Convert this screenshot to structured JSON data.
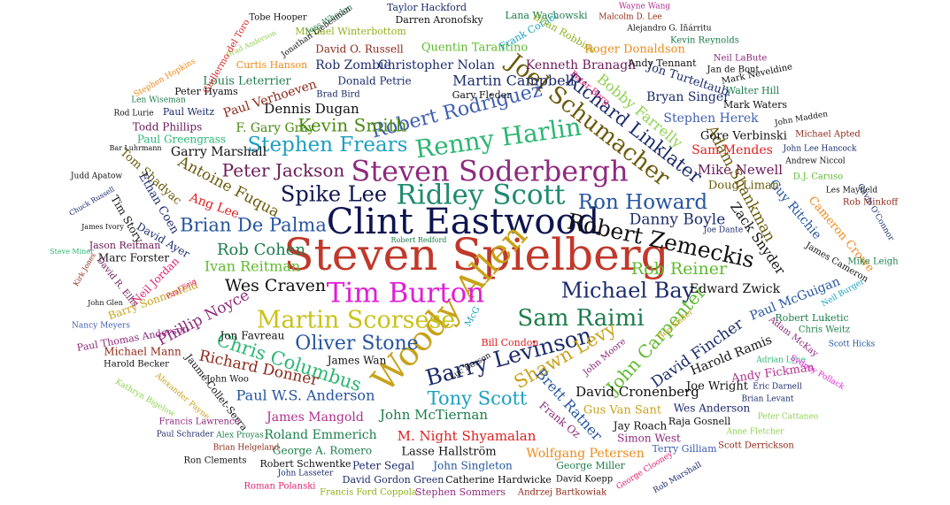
{
  "title": "",
  "words": [
    {
      "text": "Steven Spielberg",
      "color": "#c0392b",
      "weight": 1.0
    },
    {
      "text": "Clint Eastwood",
      "color": "#0d1450",
      "weight": 0.86
    },
    {
      "text": "Woody Allen",
      "color": "#c8a21a",
      "weight": 0.78
    },
    {
      "text": "Steven Soderbergh",
      "color": "#8e2a7e",
      "weight": 0.7
    },
    {
      "text": "Ridley Scott",
      "color": "#1f8a70",
      "weight": 0.7
    },
    {
      "text": "Tim Burton",
      "color": "#e01fd6",
      "weight": 0.68
    },
    {
      "text": "Renny Harlin",
      "color": "#2bb673",
      "weight": 0.62
    },
    {
      "text": "Martin Scorsese",
      "color": "#c8c21a",
      "weight": 0.6
    },
    {
      "text": "Robert Zemeckis",
      "color": "#111111",
      "weight": 0.56
    },
    {
      "text": "Joel Schumacher",
      "color": "#6b5a0c",
      "weight": 0.56
    },
    {
      "text": "Barry Levinson",
      "color": "#1c2b6b",
      "weight": 0.56
    },
    {
      "text": "Sam Raimi",
      "color": "#1d7d4d",
      "weight": 0.56
    },
    {
      "text": "Michael Bay",
      "color": "#1c2b6b",
      "weight": 0.52
    },
    {
      "text": "Spike Lee",
      "color": "#0d1450",
      "weight": 0.52
    },
    {
      "text": "Ron Howard",
      "color": "#2554a0",
      "weight": 0.5
    },
    {
      "text": "Robert Rodriguez",
      "color": "#3f5fb0",
      "weight": 0.5
    },
    {
      "text": "Stephen Frears",
      "color": "#1da0c0",
      "weight": 0.5
    },
    {
      "text": "Richard Linklater",
      "color": "#1c2b6b",
      "weight": 0.48
    },
    {
      "text": "Oliver Stone",
      "color": "#2554a0",
      "weight": 0.5
    },
    {
      "text": "Brian De Palma",
      "color": "#2554a0",
      "weight": 0.45
    },
    {
      "text": "Chris Columbus",
      "color": "#2bb673",
      "weight": 0.45
    },
    {
      "text": "Shawn Levy",
      "color": "#c8a21a",
      "weight": 0.45
    },
    {
      "text": "Tony Scott",
      "color": "#1da0c0",
      "weight": 0.45
    },
    {
      "text": "John Carpenter",
      "color": "#5fba2f",
      "weight": 0.43
    },
    {
      "text": "Peter Jackson",
      "color": "#6b1a5a",
      "weight": 0.42
    },
    {
      "text": "Kevin Smith",
      "color": "#4a8a10",
      "weight": 0.42
    },
    {
      "text": "Wes Craven",
      "color": "#111111",
      "weight": 0.4
    },
    {
      "text": "Rob Reiner",
      "color": "#5fba2f",
      "weight": 0.4
    },
    {
      "text": "Adam Shankman",
      "color": "#6b5a0c",
      "weight": 0.36
    },
    {
      "text": "Rob Cohen",
      "color": "#1d7d4d",
      "weight": 0.38
    },
    {
      "text": "Danny Boyle",
      "color": "#1c2b6b",
      "weight": 0.37
    },
    {
      "text": "David Fincher",
      "color": "#1c2b6b",
      "weight": 0.36
    },
    {
      "text": "Antoine Fuqua",
      "color": "#6b5a0c",
      "weight": 0.36
    },
    {
      "text": "Phillip Noyce",
      "color": "#8e2a7e",
      "weight": 0.34
    },
    {
      "text": "Richard Donner",
      "color": "#8e2a1a",
      "weight": 0.34
    },
    {
      "text": "Ivan Reitman",
      "color": "#5fba2f",
      "weight": 0.33
    },
    {
      "text": "Paul W.S. Anderson",
      "color": "#2554a0",
      "weight": 0.33
    },
    {
      "text": "Brett Ratner",
      "color": "#2554a0",
      "weight": 0.33
    },
    {
      "text": "Bobby Farrelly",
      "color": "#8fd14f",
      "weight": 0.33
    },
    {
      "text": "Zack Snyder",
      "color": "#111111",
      "weight": 0.3
    },
    {
      "text": "Martin Campbell",
      "color": "#1c2b6b",
      "weight": 0.32
    },
    {
      "text": "John McTiernan",
      "color": "#1d7d4d",
      "weight": 0.32
    },
    {
      "text": "David Cronenberg",
      "color": "#111111",
      "weight": 0.32
    },
    {
      "text": "M. Night Shyamalan",
      "color": "#e02020",
      "weight": 0.31
    },
    {
      "text": "Dennis Dugan",
      "color": "#111111",
      "weight": 0.31
    },
    {
      "text": "Mike Newell",
      "color": "#6b1a5a",
      "weight": 0.3
    },
    {
      "text": "Guy Ritchie",
      "color": "#2554a0",
      "weight": 0.28
    },
    {
      "text": "Paul McGuigan",
      "color": "#2554a0",
      "weight": 0.28
    },
    {
      "text": "Edward Zwick",
      "color": "#111111",
      "weight": 0.28
    },
    {
      "text": "Sam Mendes",
      "color": "#e02020",
      "weight": 0.28
    },
    {
      "text": "Harold Ramis",
      "color": "#111111",
      "weight": 0.28
    },
    {
      "text": "Cameron Crowe",
      "color": "#f08a1a",
      "weight": 0.26
    },
    {
      "text": "Garry Marshall",
      "color": "#111111",
      "weight": 0.28
    },
    {
      "text": "F. Gary Gray",
      "color": "#4a8a10",
      "weight": 0.28
    },
    {
      "text": "Ang Lee",
      "color": "#e02020",
      "weight": 0.28
    },
    {
      "text": "James Mangold",
      "color": "#b0308e",
      "weight": 0.27
    },
    {
      "text": "Wolfgang Petersen",
      "color": "#f08a1a",
      "weight": 0.27
    },
    {
      "text": "Roland Emmerich",
      "color": "#1d7d4d",
      "weight": 0.26
    },
    {
      "text": "Rob Zombie",
      "color": "#1c2b6b",
      "weight": 0.25
    },
    {
      "text": "Christopher Nolan",
      "color": "#1c2b6b",
      "weight": 0.25
    },
    {
      "text": "Kenneth Branagh",
      "color": "#6b1a5a",
      "weight": 0.25
    },
    {
      "text": "Stephen Herek",
      "color": "#3f5fb0",
      "weight": 0.25
    },
    {
      "text": "Bryan Singer",
      "color": "#1c2b6b",
      "weight": 0.25
    },
    {
      "text": "Tom Shadyac",
      "color": "#6b5a0c",
      "weight": 0.24
    },
    {
      "text": "Ethan Coen",
      "color": "#1c2b6b",
      "weight": 0.24
    },
    {
      "text": "Jon Turteltaub",
      "color": "#1c2b6b",
      "weight": 0.24
    },
    {
      "text": "Paul Verhoeven",
      "color": "#8e2a1a",
      "weight": 0.24
    },
    {
      "text": "Doug Liman",
      "color": "#6b5a0c",
      "weight": 0.24
    },
    {
      "text": "Gore Verbinski",
      "color": "#111111",
      "weight": 0.23
    },
    {
      "text": "Roger Donaldson",
      "color": "#f08a1a",
      "weight": 0.23
    },
    {
      "text": "Quentin Tarantino",
      "color": "#5fba2f",
      "weight": 0.23
    },
    {
      "text": "Andy Fickman",
      "color": "#b0308e",
      "weight": 0.23
    },
    {
      "text": "Jon Favreau",
      "color": "#111111",
      "weight": 0.22
    },
    {
      "text": "Gus Van Sant",
      "color": "#c8a21a",
      "weight": 0.22
    },
    {
      "text": "Marc Forster",
      "color": "#111111",
      "weight": 0.21
    },
    {
      "text": "Barry Sonnenfeld",
      "color": "#c8a21a",
      "weight": 0.21
    },
    {
      "text": "David Ayer",
      "color": "#1c2b6b",
      "weight": 0.21
    },
    {
      "text": "Louis Leterrier",
      "color": "#1d7d4d",
      "weight": 0.22
    },
    {
      "text": "Todd Phillips",
      "color": "#6b1a5a",
      "weight": 0.21
    },
    {
      "text": "David O. Russell",
      "color": "#8e2a1a",
      "weight": 0.21
    },
    {
      "text": "Lasse Hallström",
      "color": "#111111",
      "weight": 0.22
    },
    {
      "text": "Joe Wright",
      "color": "#111111",
      "weight": 0.21
    },
    {
      "text": "Jay Roach",
      "color": "#111111",
      "weight": 0.21
    },
    {
      "text": "Wes Anderson",
      "color": "#1c2b6b",
      "weight": 0.2
    },
    {
      "text": "Paul Greengrass",
      "color": "#2bb673",
      "weight": 0.2
    },
    {
      "text": "Donald Petrie",
      "color": "#1c2b6b",
      "weight": 0.2
    },
    {
      "text": "Neil Jordan",
      "color": "#e02070",
      "weight": 0.2
    },
    {
      "text": "George A. Romero",
      "color": "#1d7d4d",
      "weight": 0.2
    },
    {
      "text": "Peter Segal",
      "color": "#1c2b6b",
      "weight": 0.2
    },
    {
      "text": "John Singleton",
      "color": "#2554a0",
      "weight": 0.2
    },
    {
      "text": "Simon West",
      "color": "#8e2a7e",
      "weight": 0.2
    },
    {
      "text": "Frank Oz",
      "color": "#8e2a7e",
      "weight": 0.2
    },
    {
      "text": "Tim Story",
      "color": "#111111",
      "weight": 0.19
    },
    {
      "text": "James Wan",
      "color": "#111111",
      "weight": 0.19
    },
    {
      "text": "Michael Mann",
      "color": "#8e2a1a",
      "weight": 0.18
    },
    {
      "text": "Jaume Collet-Serra",
      "color": "#111111",
      "weight": 0.18
    },
    {
      "text": "Andy Tennant",
      "color": "#111111",
      "weight": 0.18
    },
    {
      "text": "Michael Winterbottom",
      "color": "#8fb01a",
      "weight": 0.18
    },
    {
      "text": "Lana Wachowski",
      "color": "#1d7d4d",
      "weight": 0.17
    },
    {
      "text": "Darren Aronofsky",
      "color": "#111111",
      "weight": 0.17
    },
    {
      "text": "Taylor Hackford",
      "color": "#1c2b6b",
      "weight": 0.17
    },
    {
      "text": "Frank Coraci",
      "color": "#1da0c0",
      "weight": 0.17
    },
    {
      "text": "Curtis Hanson",
      "color": "#f08a1a",
      "weight": 0.16
    },
    {
      "text": "Peter Hyams",
      "color": "#111111",
      "weight": 0.16
    },
    {
      "text": "Paul Weitz",
      "color": "#1c2b6b",
      "weight": 0.15
    },
    {
      "text": "Gary Fleder",
      "color": "#111111",
      "weight": 0.15
    },
    {
      "text": "Brian Robbins",
      "color": "#8fb01a",
      "weight": 0.15
    },
    {
      "text": "Jason Reitman",
      "color": "#6b1a5a",
      "weight": 0.15
    },
    {
      "text": "John Moore",
      "color": "#8e2a7e",
      "weight": 0.15
    },
    {
      "text": "Robert Luketic",
      "color": "#1d7d4d",
      "weight": 0.15
    },
    {
      "text": "Robert Schwentke",
      "color": "#111111",
      "weight": 0.15
    },
    {
      "text": "Catherine Hardwicke",
      "color": "#111111",
      "weight": 0.15
    },
    {
      "text": "George Miller",
      "color": "#1d7d4d",
      "weight": 0.15
    },
    {
      "text": "Raja Gosnell",
      "color": "#111111",
      "weight": 0.15
    },
    {
      "text": "David Gordon Green",
      "color": "#1c2b6b",
      "weight": 0.15
    },
    {
      "text": "Stephen Sommers",
      "color": "#8e2a7e",
      "weight": 0.15
    },
    {
      "text": "Mark Waters",
      "color": "#111111",
      "weight": 0.15
    },
    {
      "text": "Walter Hill",
      "color": "#1d7d4d",
      "weight": 0.15
    },
    {
      "text": "Bill Condon",
      "color": "#e02020",
      "weight": 0.14
    },
    {
      "text": "Terry Gilliam",
      "color": "#3f5fb0",
      "weight": 0.14
    },
    {
      "text": "Brad Bird",
      "color": "#1c2b6b",
      "weight": 0.12
    },
    {
      "text": "Peter Berg",
      "color": "#e02070",
      "weight": 0.12
    },
    {
      "text": "Francis Ford Coppola",
      "color": "#8fb01a",
      "weight": 0.12
    },
    {
      "text": "Roman Polanski",
      "color": "#e02070",
      "weight": 0.12
    },
    {
      "text": "Andrzej Bartkowiak",
      "color": "#8e2a1a",
      "weight": 0.12
    },
    {
      "text": "Scott Derrickson",
      "color": "#8e2a1a",
      "weight": 0.12
    },
    {
      "text": "Kevin Reynolds",
      "color": "#1d7d4d",
      "weight": 0.11
    },
    {
      "text": "Neil LaBute",
      "color": "#8e2a7e",
      "weight": 0.11
    },
    {
      "text": "Jan de Bont",
      "color": "#111111",
      "weight": 0.11
    },
    {
      "text": "Mark Neveldine",
      "color": "#111111",
      "weight": 0.11
    },
    {
      "text": "John Madden",
      "color": "#111111",
      "weight": 0.1
    },
    {
      "text": "Michael Apted",
      "color": "#8e2a1a",
      "weight": 0.11
    },
    {
      "text": "John Lee Hancock",
      "color": "#1c2b6b",
      "weight": 0.1
    },
    {
      "text": "Andrew Niccol",
      "color": "#111111",
      "weight": 0.1
    },
    {
      "text": "D.J. Caruso",
      "color": "#5fba2f",
      "weight": 0.1
    },
    {
      "text": "Les Mayfield",
      "color": "#111111",
      "weight": 0.1
    },
    {
      "text": "Rob Minkoff",
      "color": "#8e2a1a",
      "weight": 0.1
    },
    {
      "text": "Gavin O'Connor",
      "color": "#1c2b6b",
      "weight": 0.1
    },
    {
      "text": "James Cameron",
      "color": "#111111",
      "weight": 0.11
    },
    {
      "text": "Mike Leigh",
      "color": "#1d7d4d",
      "weight": 0.11
    },
    {
      "text": "Neil Burger",
      "color": "#1da0c0",
      "weight": 0.1
    },
    {
      "text": "Chris Weitz",
      "color": "#1d7d4d",
      "weight": 0.11
    },
    {
      "text": "Scott Hicks",
      "color": "#2554a0",
      "weight": 0.1
    },
    {
      "text": "Adam McKay",
      "color": "#8e2a7e",
      "weight": 0.12
    },
    {
      "text": "Adrian Lyne",
      "color": "#2bb673",
      "weight": 0.1
    },
    {
      "text": "Sydney Pollack",
      "color": "#e01fd6",
      "weight": 0.1
    },
    {
      "text": "Eric Darnell",
      "color": "#1c2b6b",
      "weight": 0.1
    },
    {
      "text": "Brian Levant",
      "color": "#1c2b6b",
      "weight": 0.1
    },
    {
      "text": "Peter Cattaneo",
      "color": "#8fd14f",
      "weight": 0.1
    },
    {
      "text": "Anne Fletcher",
      "color": "#8fd14f",
      "weight": 0.1
    },
    {
      "text": "Ben Stiller",
      "color": "#c8a21a",
      "weight": 0.1
    },
    {
      "text": "McG",
      "color": "#1da0c0",
      "weight": 0.1
    },
    {
      "text": "Luc Besson",
      "color": "#111111",
      "weight": 0.1
    },
    {
      "text": "Joe Dante",
      "color": "#1c2b6b",
      "weight": 0.1
    },
    {
      "text": "Robert Redford",
      "color": "#1d7d4d",
      "weight": 0.09
    },
    {
      "text": "Paul Feig",
      "color": "#e02070",
      "weight": 0.09
    },
    {
      "text": "Paul Thomas Anderson",
      "color": "#8e2a7e",
      "weight": 0.12
    },
    {
      "text": "Nancy Meyers",
      "color": "#3f5fb0",
      "weight": 0.1
    },
    {
      "text": "Harold Becker",
      "color": "#111111",
      "weight": 0.1
    },
    {
      "text": "John Woo",
      "color": "#111111",
      "weight": 0.11
    },
    {
      "text": "Kathryn Bigelow",
      "color": "#8fd14f",
      "weight": 0.1
    },
    {
      "text": "Alexander Payne",
      "color": "#c8a21a",
      "weight": 0.1
    },
    {
      "text": "Francis Lawrence",
      "color": "#8e2a7e",
      "weight": 0.1
    },
    {
      "text": "Paul Schrader",
      "color": "#1c2b6b",
      "weight": 0.1
    },
    {
      "text": "Alex Proyas",
      "color": "#1d7d4d",
      "weight": 0.1
    },
    {
      "text": "Brian Helgeland",
      "color": "#8e2a1a",
      "weight": 0.1
    },
    {
      "text": "Ron Clements",
      "color": "#111111",
      "weight": 0.1
    },
    {
      "text": "John Lasseter",
      "color": "#1c2b6b",
      "weight": 0.1
    },
    {
      "text": "David Koepp",
      "color": "#111111",
      "weight": 0.1
    },
    {
      "text": "George Clooney",
      "color": "#e02070",
      "weight": 0.09
    },
    {
      "text": "Rob Marshall",
      "color": "#1c2b6b",
      "weight": 0.09
    },
    {
      "text": "Tobe Hooper",
      "color": "#111111",
      "weight": 0.1
    },
    {
      "text": "Joss Whedon",
      "color": "#1d7d4d",
      "weight": 0.1
    },
    {
      "text": "Jonathan Liebesman",
      "color": "#111111",
      "weight": 0.1
    },
    {
      "text": "Brad Anderson",
      "color": "#8fd14f",
      "weight": 0.09
    },
    {
      "text": "Guillermo del Toro",
      "color": "#e02020",
      "weight": 0.1
    },
    {
      "text": "Stephen Hopkins",
      "color": "#f08a1a",
      "weight": 0.09
    },
    {
      "text": "Len Wiseman",
      "color": "#1d7d4d",
      "weight": 0.1
    },
    {
      "text": "Rod Lurie",
      "color": "#111111",
      "weight": 0.1
    },
    {
      "text": "Bar Luhrmann",
      "color": "#111111",
      "weight": 0.09
    },
    {
      "text": "Judd Apatow",
      "color": "#111111",
      "weight": 0.1
    },
    {
      "text": "Chuck Russell",
      "color": "#1c2b6b",
      "weight": 0.09
    },
    {
      "text": "James Ivory",
      "color": "#111111",
      "weight": 0.09
    },
    {
      "text": "Steve Miner",
      "color": "#2bb673",
      "weight": 0.09
    },
    {
      "text": "Kirk Jones",
      "color": "#8e2a1a",
      "weight": 0.09
    },
    {
      "text": "David R. Ellis",
      "color": "#6b1a5a",
      "weight": 0.1
    },
    {
      "text": "John Glen",
      "color": "#111111",
      "weight": 0.09
    },
    {
      "text": "Wayne Wang",
      "color": "#b0308e",
      "weight": 0.1
    },
    {
      "text": "Malcolm D. Lee",
      "color": "#8e2a1a",
      "weight": 0.1
    },
    {
      "text": "Alejandro G. Iñárritu",
      "color": "#111111",
      "weight": 0.1
    }
  ]
}
